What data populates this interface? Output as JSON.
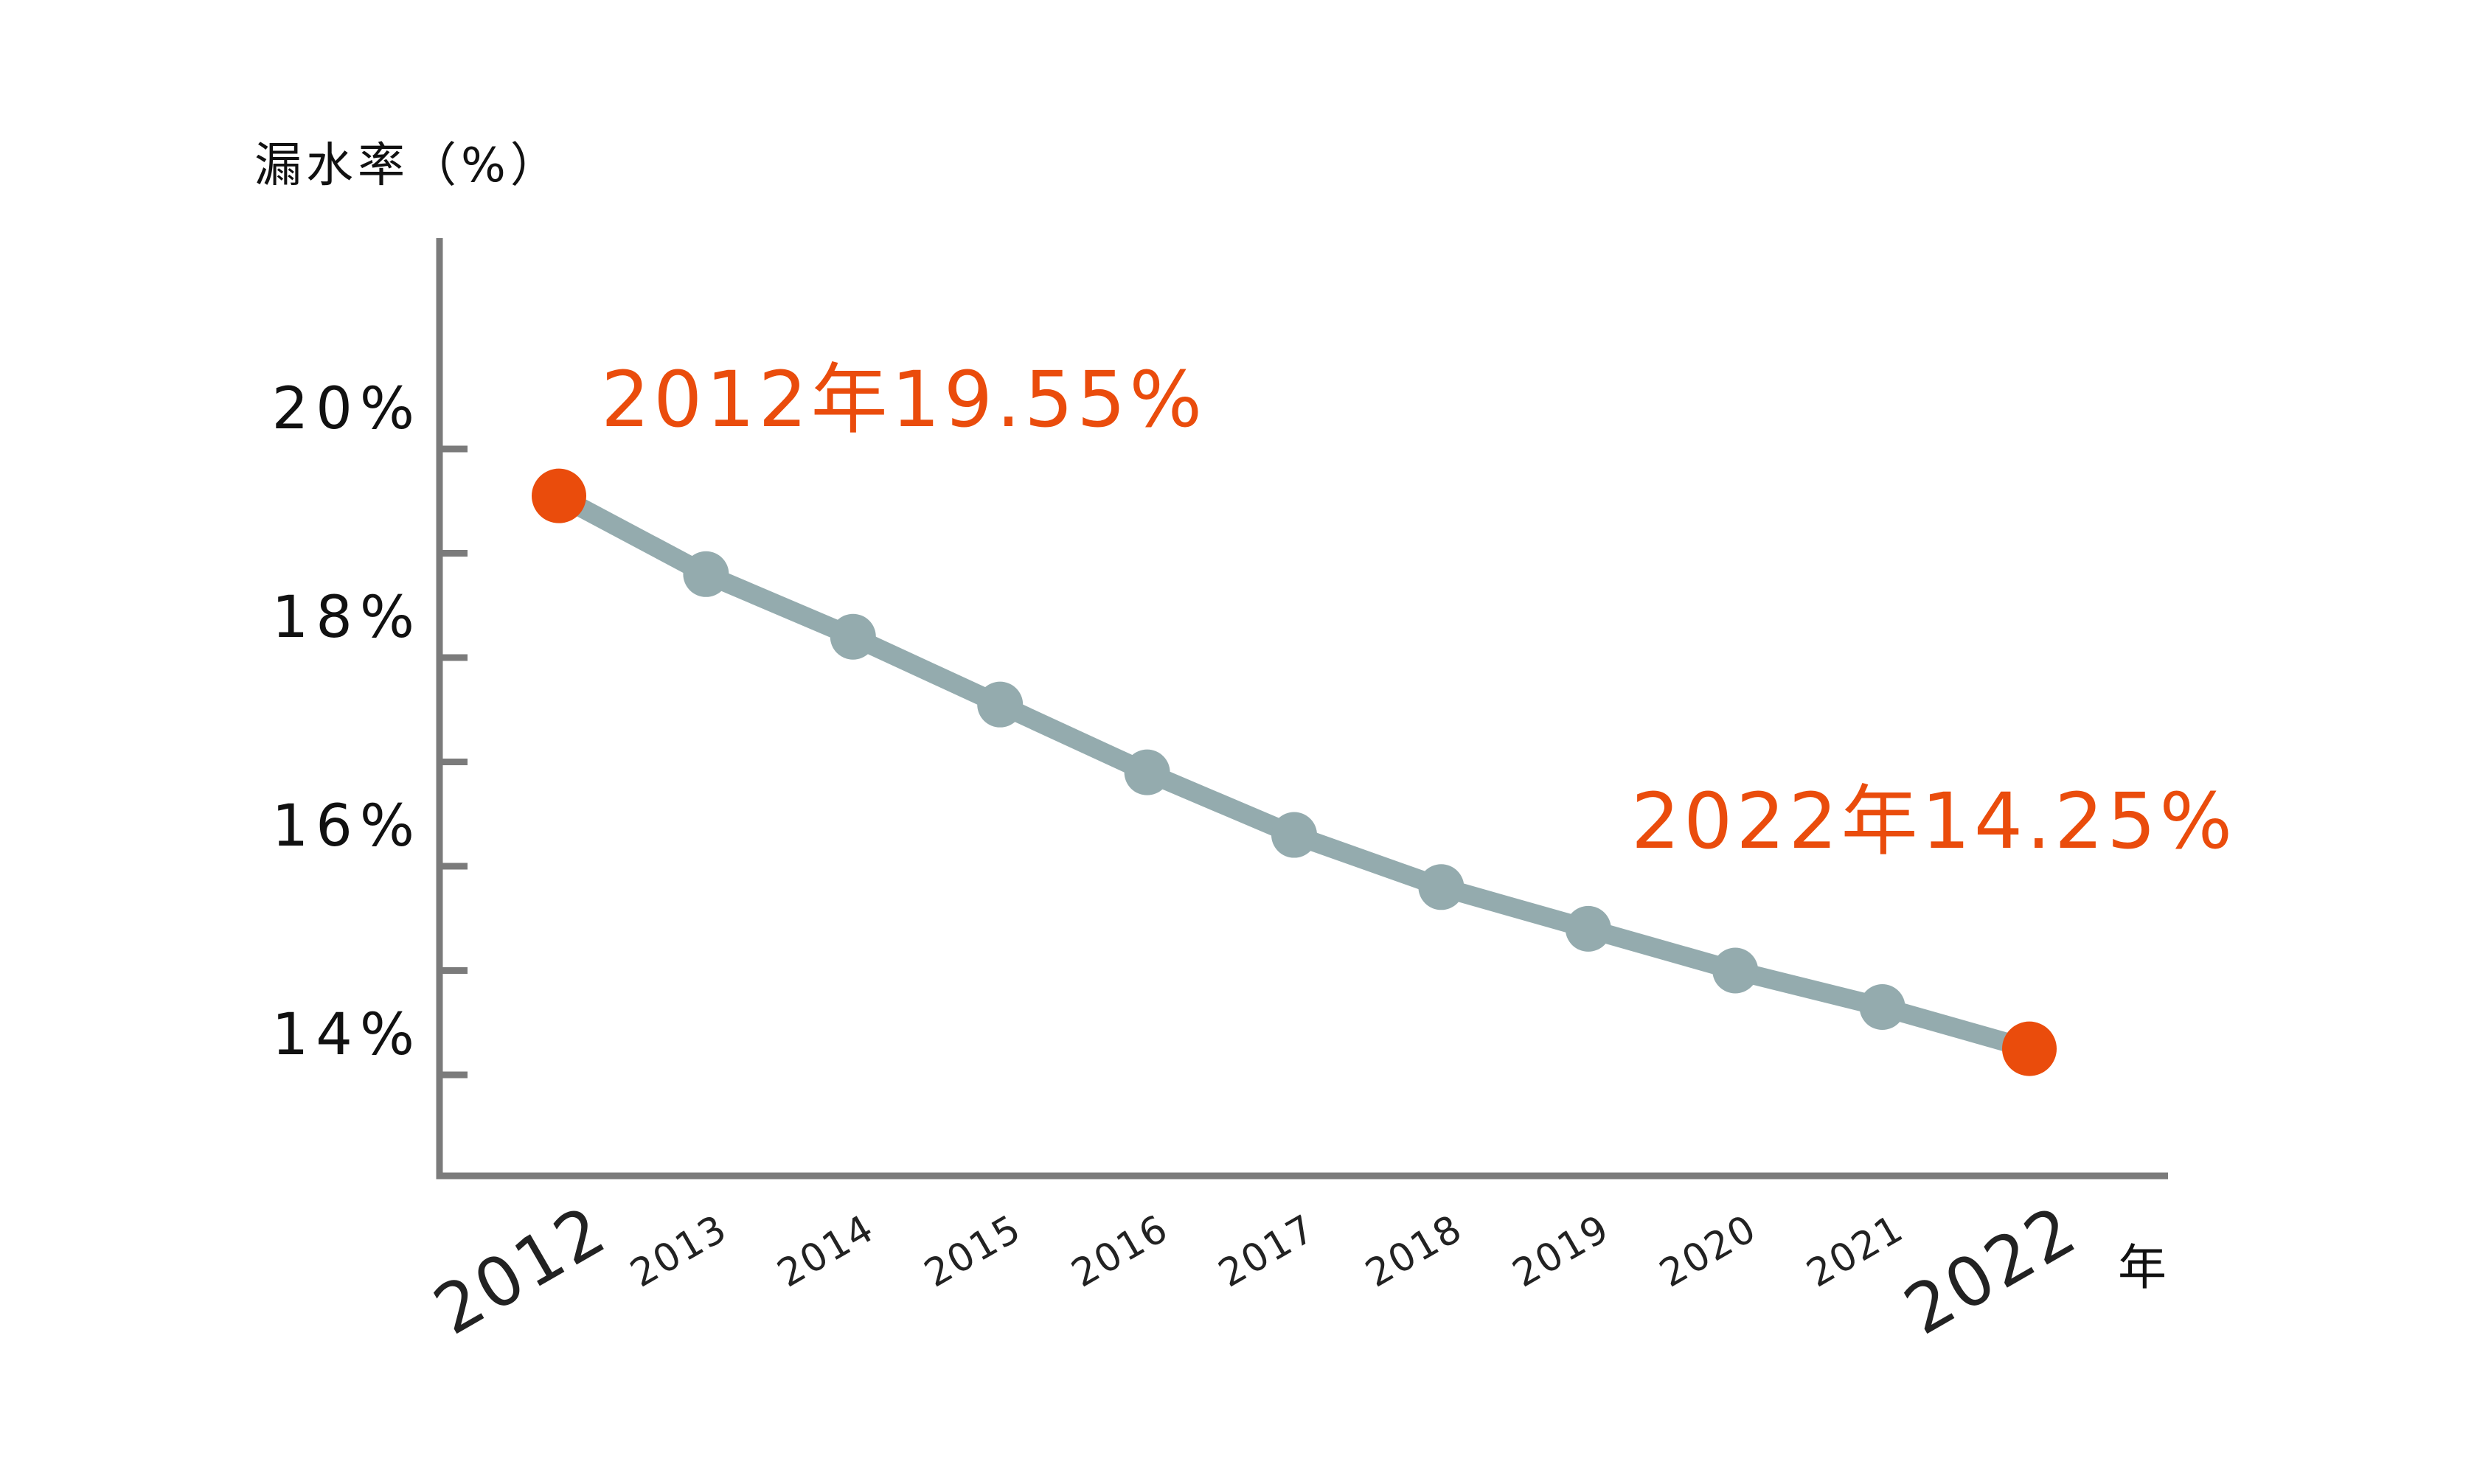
{
  "chart_data": {
    "type": "line",
    "ylabel": "漏水率（%）",
    "xunit": "年",
    "x": [
      "2012",
      "2013",
      "2014",
      "2015",
      "2016",
      "2017",
      "2018",
      "2019",
      "2020",
      "2021",
      "2022"
    ],
    "series": [
      {
        "values": [
          19.55,
          18.8,
          18.2,
          17.55,
          16.9,
          16.3,
          15.8,
          15.4,
          15.0,
          14.65,
          14.25
        ]
      }
    ],
    "ylim": [
      13,
      22
    ],
    "yticks_labeled": [
      {
        "value": 20,
        "label": "20%"
      },
      {
        "value": 18,
        "label": "18%"
      },
      {
        "value": 16,
        "label": "16%"
      },
      {
        "value": 14,
        "label": "14%"
      }
    ],
    "yticks_minor": [
      19,
      17,
      15
    ],
    "emphasized_x": [
      "2012",
      "2022"
    ],
    "annotations": [
      {
        "x": "2012",
        "value": 19.55,
        "text": "2012年19.55%"
      },
      {
        "x": "2022",
        "value": 14.25,
        "text": "2022年14.25%"
      }
    ],
    "colors": {
      "line": "#94abae",
      "highlight": "#ea4c0c",
      "axis": "#7b7b7b",
      "text": "#111111"
    },
    "grid": false
  }
}
